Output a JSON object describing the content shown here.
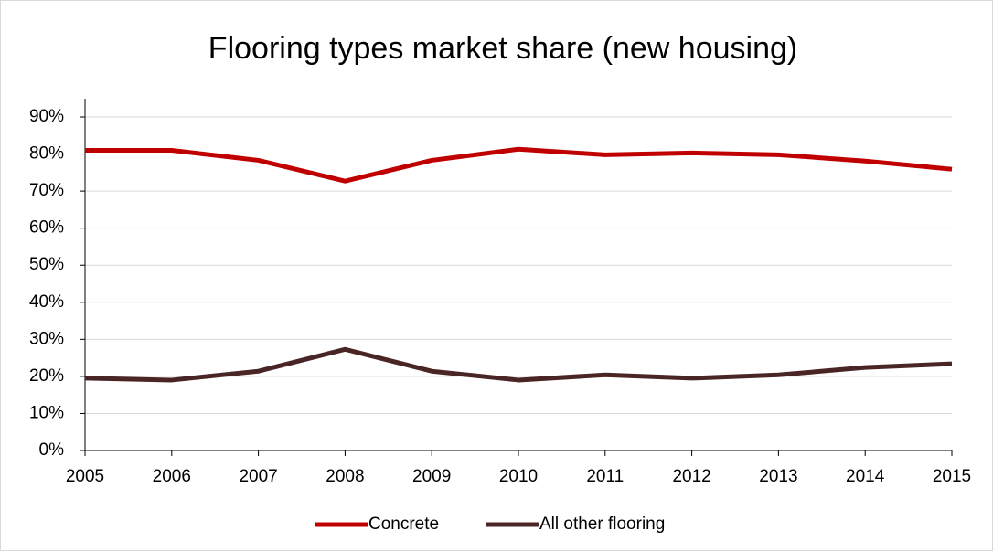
{
  "chart_data": {
    "type": "line",
    "title": "Flooring types market share (new housing)",
    "x": [
      2005,
      2006,
      2007,
      2008,
      2009,
      2010,
      2011,
      2012,
      2013,
      2014,
      2015
    ],
    "xlim": [
      2005,
      2015
    ],
    "xticks": [
      2005,
      2006,
      2007,
      2008,
      2009,
      2010,
      2011,
      2012,
      2013,
      2014,
      2015
    ],
    "ylim": [
      0,
      90
    ],
    "yticks": [
      {
        "value": 0,
        "label": "0%"
      },
      {
        "value": 10,
        "label": "10%"
      },
      {
        "value": 20,
        "label": "20%"
      },
      {
        "value": 30,
        "label": "30%"
      },
      {
        "value": 40,
        "label": "40%"
      },
      {
        "value": 50,
        "label": "50%"
      },
      {
        "value": 60,
        "label": "60%"
      },
      {
        "value": 70,
        "label": "70%"
      },
      {
        "value": 80,
        "label": "80%"
      },
      {
        "value": 90,
        "label": "90%"
      }
    ],
    "grid": true,
    "legend": "bottom",
    "series": [
      {
        "name": "Concrete",
        "color": "#c00000",
        "values": [
          81.0,
          81.0,
          78.3,
          72.7,
          78.3,
          81.3,
          79.8,
          80.3,
          79.8,
          78.1,
          75.9
        ]
      },
      {
        "name": "All other flooring",
        "color": "#4a2525",
        "values": [
          19.5,
          19.0,
          21.4,
          27.3,
          21.4,
          19.0,
          20.4,
          19.5,
          20.4,
          22.4,
          23.4
        ]
      }
    ]
  }
}
